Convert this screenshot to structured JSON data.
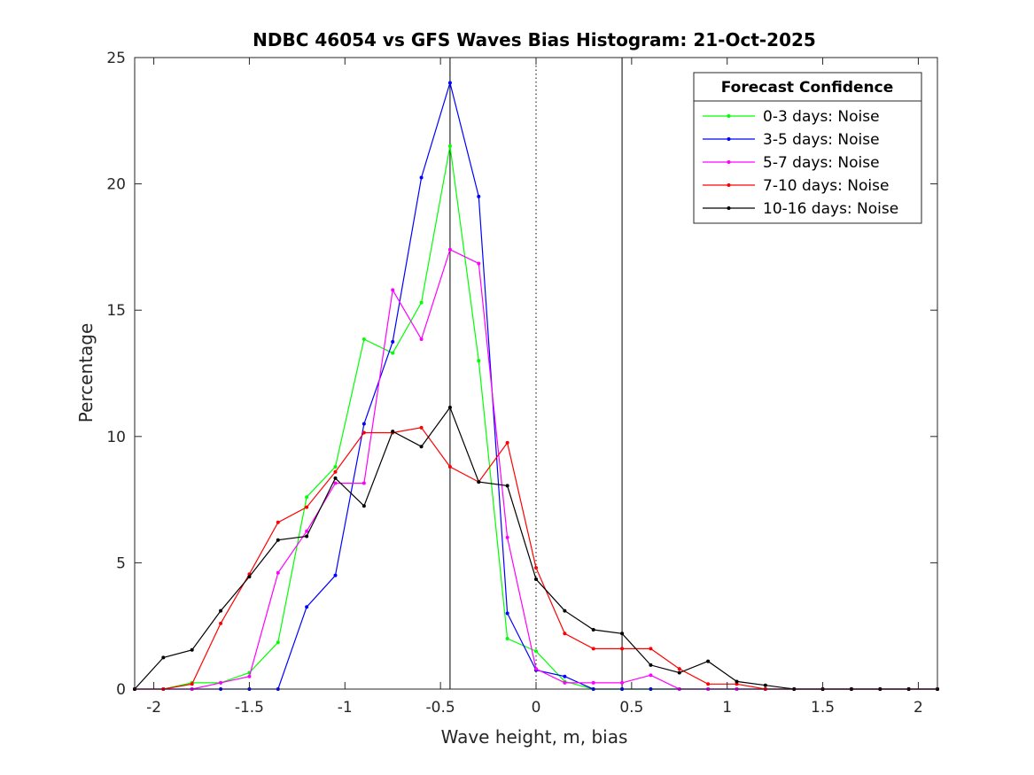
{
  "chart_data": {
    "type": "line",
    "title": "NDBC 46054 vs GFS Waves Bias Histogram: 21-Oct-2025",
    "xlabel": "Wave height, m, bias",
    "ylabel": "Percentage",
    "xlim": [
      -2.1,
      2.1
    ],
    "ylim": [
      0,
      25
    ],
    "xticks": [
      -2,
      -1.5,
      -1,
      -0.5,
      0,
      0.5,
      1,
      1.5,
      2
    ],
    "xtick_labels": [
      "-2",
      "-1.5",
      "-1",
      "-0.5",
      "0",
      "0.5",
      "1",
      "1.5",
      "2"
    ],
    "yticks": [
      0,
      5,
      10,
      15,
      20,
      25
    ],
    "ytick_labels": [
      "0",
      "5",
      "10",
      "15",
      "20",
      "25"
    ],
    "grid": false,
    "vertical_lines": [
      {
        "x": -0.45,
        "style": "solid",
        "color": "#000000"
      },
      {
        "x": 0.0,
        "style": "dotted",
        "color": "#000000"
      },
      {
        "x": 0.45,
        "style": "solid",
        "color": "#000000"
      }
    ],
    "legend": {
      "title": "Forecast Confidence",
      "placement": "top-right"
    },
    "x": [
      -2.1,
      -1.95,
      -1.8,
      -1.65,
      -1.5,
      -1.35,
      -1.2,
      -1.05,
      -0.9,
      -0.75,
      -0.6,
      -0.45,
      -0.3,
      -0.15,
      0.0,
      0.15,
      0.3,
      0.45,
      0.6,
      0.75,
      0.9,
      1.05,
      1.2,
      1.35,
      1.5,
      1.65,
      1.8,
      1.95,
      2.1
    ],
    "series": [
      {
        "name": "0-3 days: Noise",
        "color": "#00ff00",
        "values": [
          0,
          0,
          0.25,
          0.25,
          0.65,
          1.85,
          7.6,
          8.8,
          13.85,
          13.3,
          15.3,
          21.5,
          13.0,
          2.0,
          1.5,
          0.3,
          0,
          0,
          0,
          0,
          0,
          0,
          0,
          0,
          0,
          0,
          0,
          0,
          0
        ]
      },
      {
        "name": "3-5 days: Noise",
        "color": "#0000ff",
        "values": [
          0,
          0,
          0,
          0,
          0,
          0,
          3.25,
          4.5,
          10.5,
          13.75,
          20.25,
          24.0,
          19.5,
          3.0,
          0.75,
          0.5,
          0,
          0,
          0,
          0,
          0,
          0,
          0,
          0,
          0,
          0,
          0,
          0,
          0
        ]
      },
      {
        "name": "5-7 days: Noise",
        "color": "#ff00ff",
        "values": [
          0,
          0,
          0,
          0.25,
          0.5,
          4.6,
          6.25,
          8.15,
          8.15,
          15.8,
          13.85,
          17.4,
          16.85,
          6.0,
          0.8,
          0.25,
          0.25,
          0.25,
          0.55,
          0,
          0,
          0,
          0,
          0,
          0,
          0,
          0,
          0,
          0
        ]
      },
      {
        "name": "7-10 days: Noise",
        "color": "#ff0000",
        "values": [
          0,
          0,
          0.2,
          2.6,
          4.55,
          6.6,
          7.2,
          8.6,
          10.15,
          10.15,
          10.35,
          8.8,
          8.2,
          9.75,
          4.8,
          2.2,
          1.6,
          1.6,
          1.6,
          0.8,
          0.2,
          0.2,
          0,
          0,
          0,
          0,
          0,
          0,
          0
        ]
      },
      {
        "name": "10-16 days: Noise",
        "color": "#000000",
        "values": [
          0,
          1.25,
          1.55,
          3.1,
          4.45,
          5.9,
          6.05,
          8.35,
          7.25,
          10.2,
          9.6,
          11.15,
          8.2,
          8.05,
          4.35,
          3.1,
          2.35,
          2.2,
          0.95,
          0.65,
          1.1,
          0.3,
          0.15,
          0,
          0,
          0,
          0,
          0,
          0
        ]
      }
    ]
  }
}
